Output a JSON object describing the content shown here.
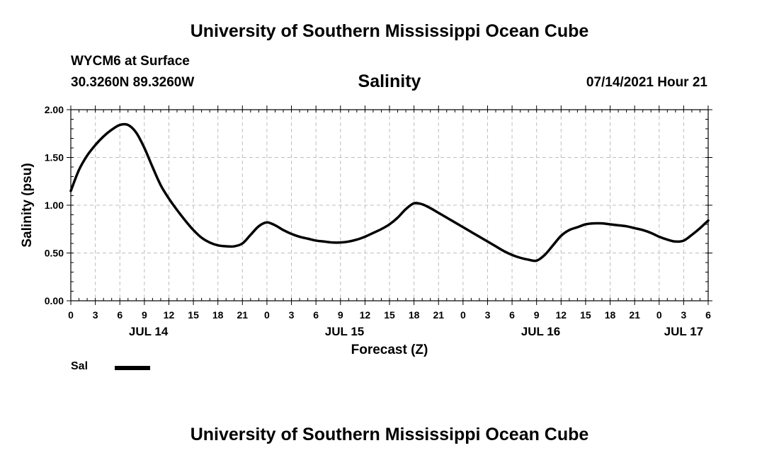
{
  "header": {
    "top_title": "University of Southern Mississippi Ocean Cube",
    "station": "WYCM6 at Surface",
    "coords": "30.3260N  89.3260W",
    "variable_title": "Salinity",
    "datetime": "07/14/2021 Hour 21",
    "bottom_title": "University of Southern Mississippi Ocean Cube"
  },
  "legend": {
    "label": "Sal",
    "color": "#000000"
  },
  "chart_data": {
    "type": "line",
    "title": "Salinity",
    "xlabel": "Forecast (Z)",
    "ylabel": "Salinity (psu)",
    "ylim": [
      0,
      2
    ],
    "xlim_hours": [
      0,
      78
    ],
    "yticks": [
      "0.00",
      "0.50",
      "1.00",
      "1.50",
      "2.00"
    ],
    "xtick_labels": [
      "0",
      "3",
      "6",
      "9",
      "12",
      "15",
      "18",
      "21",
      "0",
      "3",
      "6",
      "9",
      "12",
      "15",
      "18",
      "21",
      "0",
      "3",
      "6",
      "9",
      "12",
      "15",
      "18",
      "21",
      "0",
      "3",
      "6"
    ],
    "date_labels": [
      {
        "label": "JUL 14",
        "hour": 9.5
      },
      {
        "label": "JUL 15",
        "hour": 33.5
      },
      {
        "label": "JUL 16",
        "hour": 57.5
      },
      {
        "label": "JUL 17",
        "hour": 75
      }
    ],
    "grid": true,
    "series": [
      {
        "name": "Sal",
        "color": "#000000",
        "x": [
          0,
          1,
          2,
          3,
          4,
          5,
          6,
          7,
          8,
          9,
          10,
          11,
          12,
          13,
          14,
          15,
          16,
          17,
          18,
          19,
          20,
          21,
          22,
          23,
          24,
          25,
          26,
          27,
          28,
          29,
          30,
          31,
          32,
          33,
          34,
          35,
          36,
          37,
          38,
          39,
          40,
          41,
          42,
          43,
          44,
          45,
          46,
          47,
          48,
          49,
          50,
          51,
          52,
          53,
          54,
          55,
          56,
          57,
          58,
          59,
          60,
          61,
          62,
          63,
          64,
          65,
          66,
          67,
          68,
          69,
          70,
          71,
          72,
          73,
          74,
          75,
          76,
          77,
          78
        ],
        "values": [
          1.15,
          1.37,
          1.52,
          1.63,
          1.72,
          1.79,
          1.84,
          1.84,
          1.76,
          1.6,
          1.4,
          1.21,
          1.07,
          0.95,
          0.84,
          0.74,
          0.66,
          0.61,
          0.58,
          0.57,
          0.57,
          0.6,
          0.69,
          0.78,
          0.82,
          0.79,
          0.74,
          0.7,
          0.67,
          0.65,
          0.63,
          0.62,
          0.61,
          0.61,
          0.62,
          0.64,
          0.67,
          0.71,
          0.75,
          0.8,
          0.87,
          0.96,
          1.02,
          1.01,
          0.97,
          0.92,
          0.87,
          0.82,
          0.77,
          0.72,
          0.67,
          0.62,
          0.57,
          0.52,
          0.48,
          0.45,
          0.43,
          0.42,
          0.48,
          0.58,
          0.68,
          0.74,
          0.77,
          0.8,
          0.81,
          0.81,
          0.8,
          0.79,
          0.78,
          0.76,
          0.74,
          0.71,
          0.67,
          0.64,
          0.62,
          0.63,
          0.69,
          0.76,
          0.84
        ]
      }
    ]
  }
}
